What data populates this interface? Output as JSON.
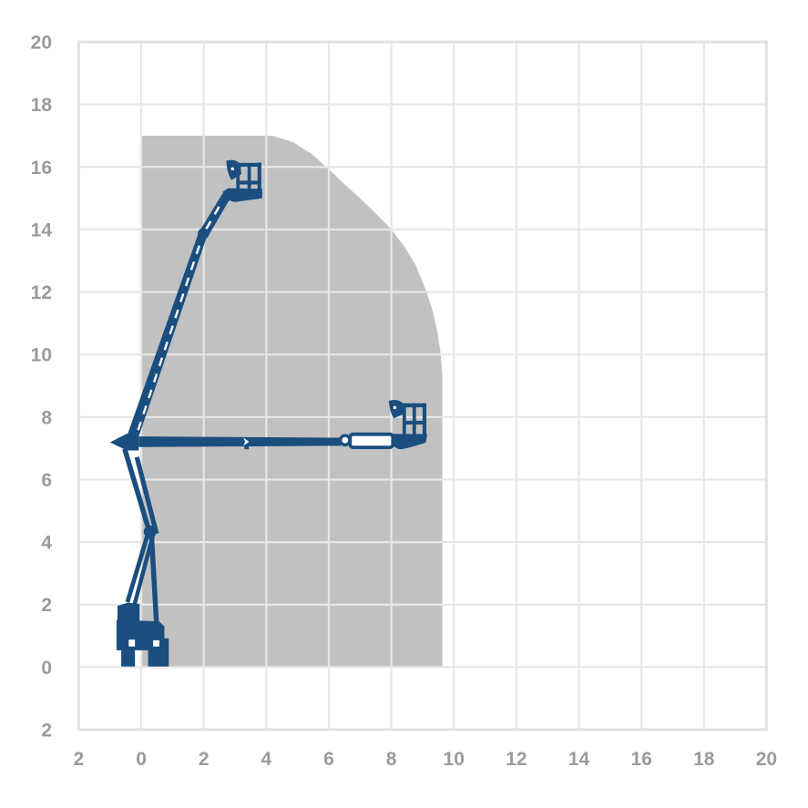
{
  "figure": {
    "kind": "working-envelope-reach-diagram",
    "subject": "articulated-boom-lift"
  },
  "chart_data": {
    "type": "area",
    "title": "",
    "xlabel": "",
    "ylabel": "",
    "grid": true,
    "legend": false,
    "axes": {
      "x": {
        "range": [
          -2,
          20
        ],
        "tick_values": [
          -2,
          0,
          2,
          4,
          6,
          8,
          10,
          12,
          14,
          16,
          18,
          20
        ],
        "tick_labels": [
          "2",
          "0",
          "2",
          "4",
          "6",
          "8",
          "10",
          "12",
          "14",
          "16",
          "18",
          "20"
        ]
      },
      "y": {
        "range": [
          -2,
          20
        ],
        "tick_values": [
          20,
          18,
          16,
          14,
          12,
          10,
          8,
          6,
          4,
          2,
          0,
          -2
        ],
        "tick_labels": [
          "20",
          "18",
          "16",
          "14",
          "12",
          "10",
          "8",
          "6",
          "4",
          "2",
          "0",
          "2"
        ]
      }
    },
    "envelope": {
      "name": "working-envelope",
      "max_platform_height": 17,
      "max_horizontal_outreach": 9.63,
      "points": [
        [
          0,
          0
        ],
        [
          0,
          17
        ],
        [
          4.2,
          17
        ],
        [
          4.85,
          16.8
        ],
        [
          5.45,
          16.42
        ],
        [
          6.0,
          15.92
        ],
        [
          6.5,
          15.45
        ],
        [
          7.0,
          15.0
        ],
        [
          7.5,
          14.52
        ],
        [
          8.0,
          14.0
        ],
        [
          8.4,
          13.48
        ],
        [
          8.78,
          12.86
        ],
        [
          9.13,
          12.0
        ],
        [
          9.32,
          11.4
        ],
        [
          9.47,
          10.75
        ],
        [
          9.57,
          10.1
        ],
        [
          9.63,
          9.4
        ],
        [
          9.63,
          0
        ]
      ]
    },
    "machine_positions": [
      {
        "name": "boom-raised",
        "platform_center": [
          3.44,
          15.5
        ]
      },
      {
        "name": "boom-horizontal-extended",
        "platform_center": [
          8.73,
          7.9
        ]
      }
    ]
  },
  "colors": {
    "background": "#ffffff",
    "envelope_fill": "#c1c1c1",
    "grid_line": "#e7e7e7",
    "plot_border": "#e2e2e2",
    "tick_label": "#9b9b9b",
    "machine_blue": "#1a4e7f"
  }
}
